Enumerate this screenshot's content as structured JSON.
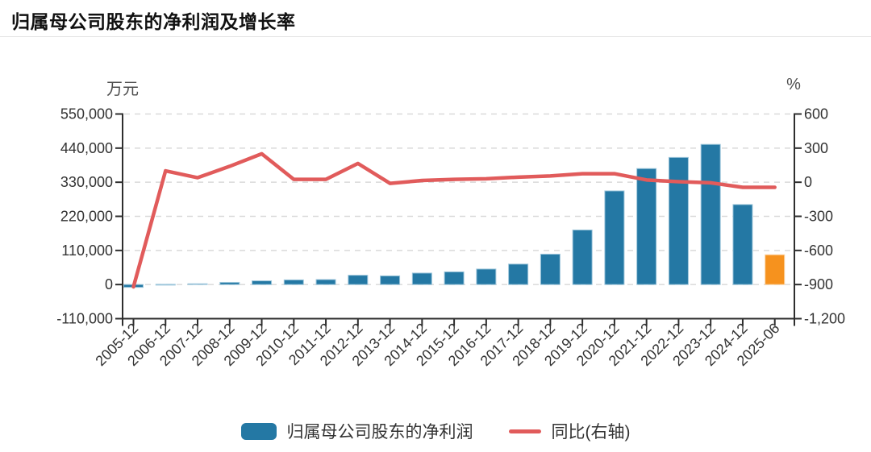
{
  "title": "归属母公司股东的净利润及增长率",
  "chart_data": {
    "type": "bar",
    "subtype": "dual-axis bar + line",
    "categories": [
      "2005-12",
      "2006-12",
      "2007-12",
      "2008-12",
      "2009-12",
      "2010-12",
      "2011-12",
      "2012-12",
      "2013-12",
      "2014-12",
      "2015-12",
      "2016-12",
      "2017-12",
      "2018-12",
      "2019-12",
      "2020-12",
      "2021-12",
      "2022-12",
      "2023-12",
      "2024-12",
      "2025-06"
    ],
    "series": [
      {
        "name": "归属母公司股东的净利润",
        "type": "bar",
        "axis": "left",
        "unit": "万元",
        "color": "#2478A4",
        "edge_color": "#9DC6DB",
        "last_bar_color": "#F6921E",
        "last_bar_edge_color": "#FBD2A0",
        "values": [
          -9000,
          800,
          2500,
          7000,
          12000,
          15000,
          16000,
          30000,
          28000,
          37000,
          41000,
          50000,
          66000,
          98000,
          176000,
          302000,
          374000,
          410000,
          452000,
          258000,
          96000
        ]
      },
      {
        "name": "同比(右轴)",
        "type": "line",
        "axis": "right",
        "unit": "%",
        "color": "#E15B5B",
        "values": [
          -920,
          100,
          40,
          140,
          250,
          25,
          25,
          165,
          -10,
          15,
          25,
          30,
          45,
          55,
          75,
          75,
          20,
          5,
          -5,
          -45,
          -45
        ]
      }
    ],
    "left_axis": {
      "label": "万元",
      "ticks": [
        550000,
        440000,
        330000,
        220000,
        110000,
        0,
        -110000
      ],
      "range": [
        -110000,
        550000
      ]
    },
    "right_axis": {
      "label": "%",
      "ticks": [
        600,
        300,
        0,
        -300,
        -600,
        -900,
        -1200
      ],
      "range": [
        -1200,
        600
      ]
    },
    "grid": "horizontal dashed",
    "legend_position": "bottom"
  },
  "legend": {
    "bar_label": "归属母公司股东的净利润",
    "line_label": "同比(右轴)"
  },
  "colors": {
    "bar": "#2478A4",
    "bar_highlight": "#F6921E",
    "line": "#E15B5B",
    "grid": "#d9d9d9",
    "axis": "#2e2e2e",
    "tick_text": "#333333",
    "unit_text": "#4d4d4d",
    "title_text": "#111111"
  }
}
